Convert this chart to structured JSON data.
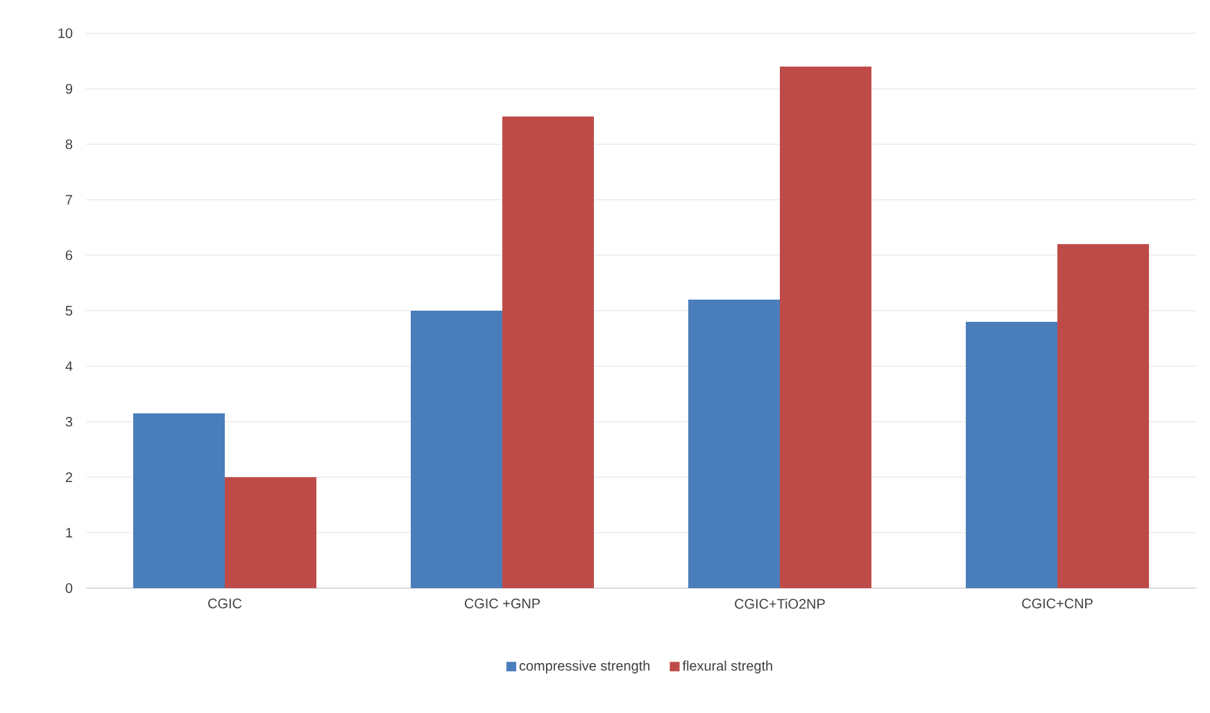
{
  "chart_data": {
    "type": "bar",
    "categories": [
      "CGIC",
      "CGIC +GNP",
      "CGIC+TiO2NP",
      "CGIC+CNP"
    ],
    "series": [
      {
        "name": "compressive strength",
        "color": "#4a7ebb",
        "values": [
          3.15,
          5.0,
          5.2,
          4.8
        ]
      },
      {
        "name": "flexural stregth",
        "color": "#be4b48",
        "values": [
          2.0,
          8.5,
          9.4,
          6.2
        ]
      }
    ],
    "ylim": [
      0,
      10
    ],
    "yticks": [
      0,
      1,
      2,
      3,
      4,
      5,
      6,
      7,
      8,
      9,
      10
    ],
    "grid": "y",
    "legend": "bottom"
  }
}
